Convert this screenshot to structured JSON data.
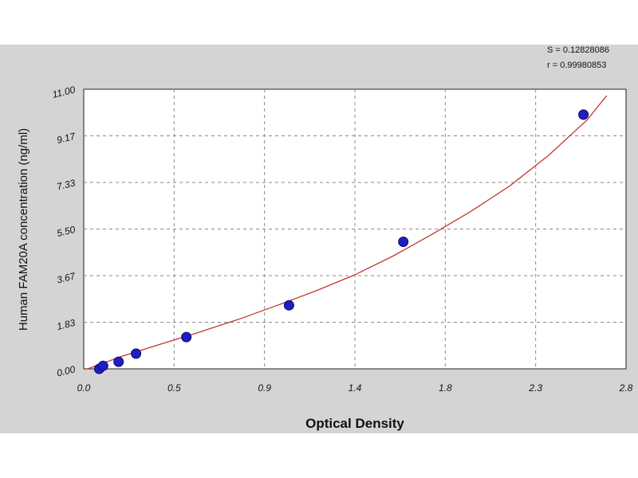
{
  "chart_data": {
    "type": "scatter",
    "xlabel": "Optical Density",
    "ylabel": "Human FAM20A concentration (ng/ml)",
    "xlim": [
      0.0,
      2.8
    ],
    "ylim": [
      0.0,
      11.0
    ],
    "x_ticks": [
      "0.0",
      "0.5",
      "0.9",
      "1.4",
      "1.8",
      "2.3",
      "2.8"
    ],
    "y_ticks": [
      "0.00",
      "1.83",
      "3.67",
      "5.50",
      "7.33",
      "9.17",
      "11.00"
    ],
    "grid": true,
    "stats": [
      "S = 0.12828086",
      "r = 0.99980853"
    ],
    "series": [
      {
        "points": [
          [
            0.08,
            0.0
          ],
          [
            0.1,
            0.12
          ],
          [
            0.18,
            0.28
          ],
          [
            0.27,
            0.6
          ],
          [
            0.53,
            1.25
          ],
          [
            1.06,
            2.5
          ],
          [
            1.65,
            5.0
          ],
          [
            2.58,
            10.0
          ]
        ]
      }
    ],
    "fit_curve": [
      [
        0.02,
        0.0
      ],
      [
        0.2,
        0.5
      ],
      [
        0.4,
        0.98
      ],
      [
        0.6,
        1.45
      ],
      [
        0.8,
        1.95
      ],
      [
        1.0,
        2.5
      ],
      [
        1.2,
        3.07
      ],
      [
        1.4,
        3.7
      ],
      [
        1.6,
        4.45
      ],
      [
        1.8,
        5.3
      ],
      [
        2.0,
        6.2
      ],
      [
        2.2,
        7.2
      ],
      [
        2.4,
        8.4
      ],
      [
        2.6,
        9.8
      ],
      [
        2.7,
        10.75
      ]
    ],
    "colors": {
      "curve": "#c0392b",
      "marker": "#1f1fbf",
      "grid": "#888888",
      "panel": "#d4d4d4",
      "plot_bg": "#ffffff"
    }
  }
}
